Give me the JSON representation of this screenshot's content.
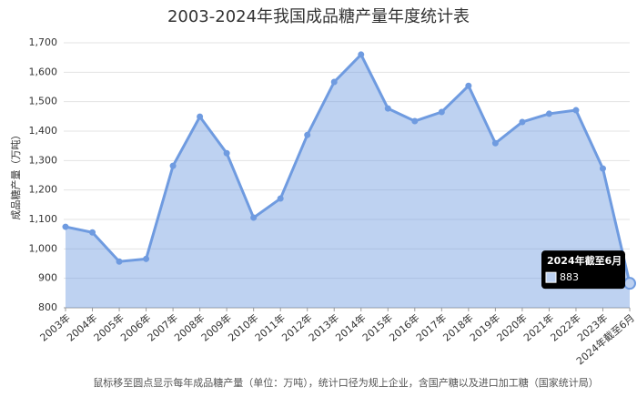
{
  "chart_data": {
    "type": "area",
    "title": "2003-2024年我国成品糖产量年度统计表",
    "y_label": "成品糖产量（万吨）",
    "footnote": "鼠标移至圆点显示每年成品糖产量（单位：万吨），统计口径为规上企业，含国产糖以及进口加工糖（国家统计局）",
    "categories": [
      "2003年",
      "2004年",
      "2005年",
      "2006年",
      "2007年",
      "2008年",
      "2009年",
      "2010年",
      "2011年",
      "2012年",
      "2013年",
      "2014年",
      "2015年",
      "2016年",
      "2017年",
      "2018年",
      "2019年",
      "2020年",
      "2021年",
      "2022年",
      "2023年",
      "2024年截至6月"
    ],
    "series": [
      {
        "name": "成品糖产量",
        "color": "#6f9be0",
        "values": [
          1075,
          1056,
          957,
          966,
          1282,
          1449,
          1325,
          1106,
          1171,
          1387,
          1567,
          1660,
          1477,
          1434,
          1465,
          1554,
          1359,
          1431,
          1459,
          1471,
          1273,
          883
        ]
      }
    ],
    "ylim": [
      800,
      1700
    ],
    "yticks": [
      800,
      900,
      {
        "value": 1000,
        "label": "1,000"
      },
      {
        "value": 1100,
        "label": "1,100"
      },
      {
        "value": 1200,
        "label": "1,200"
      },
      {
        "value": 1300,
        "label": "1,300"
      },
      {
        "value": 1400,
        "label": "1,400"
      },
      {
        "value": 1500,
        "label": "1,500"
      },
      {
        "value": 1600,
        "label": "1,600"
      },
      {
        "value": 1700,
        "label": "1,700"
      }
    ],
    "grid": true
  }
}
